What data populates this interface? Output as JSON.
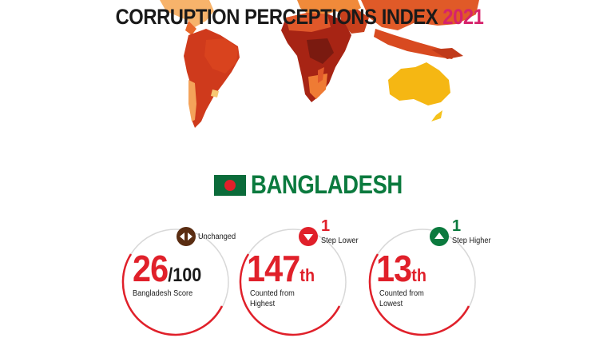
{
  "header": {
    "title": "CORRUPTION PERCEPTIONS INDEX",
    "year": "2021"
  },
  "country": {
    "name": "BANGLADESH",
    "flag_colors": {
      "field": "#0b6b3a",
      "disc": "#e0202a"
    }
  },
  "stats": [
    {
      "value": "26",
      "suffix": "/100",
      "label_lines": [
        "Bangladesh Score"
      ],
      "badge": {
        "icon": "left-right-arrows-icon",
        "color": "#5a2d12",
        "number": "",
        "text": "Unchanged"
      }
    },
    {
      "value": "147",
      "suffix": "th",
      "label_lines": [
        "Counted from",
        "Highest"
      ],
      "badge": {
        "icon": "down-arrow-icon",
        "color": "#e0202a",
        "number": "1",
        "text": "Step Lower"
      }
    },
    {
      "value": "13",
      "suffix": "th",
      "label_lines": [
        "Counted from",
        "Lowest"
      ],
      "badge": {
        "icon": "up-arrow-icon",
        "color": "#0b7a3e",
        "number": "1",
        "text": "Step Higher"
      }
    }
  ],
  "colors": {
    "accent_red": "#e0202a",
    "title_magenta": "#d6226b",
    "ring_grey": "#d8d8d8"
  }
}
